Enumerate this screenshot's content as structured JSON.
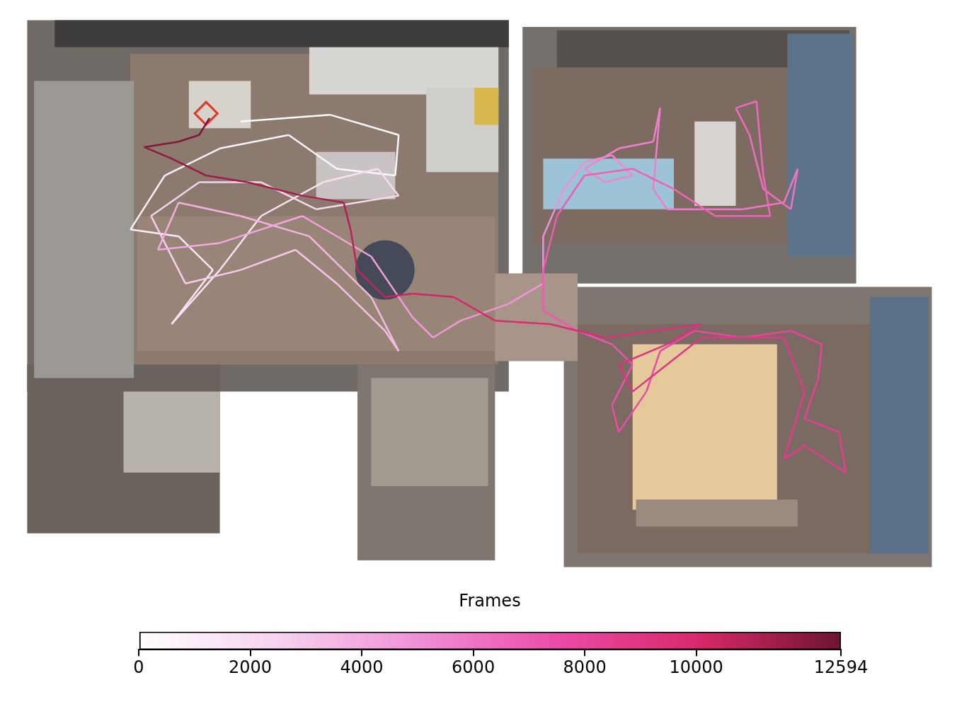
{
  "chart_data": {
    "type": "trajectory",
    "tick_labels": false,
    "grid": false,
    "xlim": [
      0,
      1352
    ],
    "ylim": [
      0,
      830
    ],
    "trajectory": {
      "x": [
        330,
        460,
        560,
        555,
        470,
        400,
        300,
        220,
        170,
        240,
        290,
        230,
        300,
        360,
        450,
        530,
        560,
        440,
        360,
        270,
        200,
        250,
        330,
        410,
        470,
        540,
        560,
        520,
        430,
        330,
        240,
        210,
        300,
        420,
        520,
        580,
        610,
        650,
        720,
        770,
        770,
        800,
        830,
        870,
        900,
        860,
        830,
        880,
        930,
        940,
        930,
        950,
        1000,
        1060,
        1120,
        1140,
        1130,
        1090,
        1070,
        1050,
        1080,
        1090,
        1100,
        1020,
        960,
        900,
        830,
        790,
        770,
        770,
        820,
        870,
        900,
        870,
        880,
        920,
        940,
        990,
        1060,
        1130,
        1175,
        1170,
        1150,
        1200,
        1210,
        1150,
        1120,
        1150,
        1120,
        1000,
        950,
        900,
        880,
        950,
        1000,
        860,
        780,
        700,
        640,
        580,
        540,
        500,
        490,
        480,
        420,
        340,
        280,
        230,
        190,
        240,
        270,
        285
      ],
      "y": [
        160,
        150,
        180,
        240,
        230,
        180,
        200,
        240,
        320,
        330,
        380,
        460,
        380,
        300,
        250,
        230,
        270,
        290,
        250,
        250,
        300,
        400,
        380,
        350,
        400,
        470,
        500,
        420,
        330,
        300,
        280,
        350,
        340,
        300,
        360,
        450,
        480,
        455,
        430,
        400,
        330,
        260,
        220,
        210,
        240,
        250,
        230,
        200,
        190,
        140,
        260,
        290,
        290,
        290,
        280,
        230,
        290,
        260,
        180,
        140,
        130,
        240,
        300,
        300,
        260,
        230,
        240,
        300,
        380,
        440,
        470,
        490,
        520,
        580,
        620,
        560,
        500,
        470,
        480,
        470,
        490,
        540,
        600,
        620,
        680,
        640,
        660,
        560,
        480,
        480,
        520,
        560,
        520,
        490,
        460,
        480,
        460,
        455,
        420,
        415,
        420,
        380,
        320,
        280,
        270,
        250,
        240,
        215,
        198,
        190,
        180,
        155
      ],
      "frames": [
        0,
        130,
        260,
        390,
        520,
        650,
        780,
        910,
        1040,
        1170,
        1300,
        1430,
        1560,
        1690,
        1820,
        1950,
        2080,
        2210,
        2340,
        2470,
        2600,
        2730,
        2860,
        2990,
        3120,
        3250,
        3380,
        3510,
        3640,
        3770,
        3900,
        4030,
        4160,
        4290,
        4420,
        4550,
        4680,
        4800,
        4870,
        4940,
        5010,
        5080,
        5150,
        5220,
        5290,
        5360,
        5430,
        5500,
        5570,
        5640,
        5710,
        5780,
        5850,
        5920,
        5990,
        6060,
        6130,
        6200,
        6270,
        6340,
        6410,
        6480,
        6550,
        6620,
        6690,
        6760,
        6830,
        6900,
        6970,
        7040,
        7100,
        7200,
        7300,
        7400,
        7500,
        7600,
        7700,
        7800,
        7900,
        8000,
        8100,
        8200,
        8300,
        8400,
        8500,
        8600,
        8700,
        8800,
        8900,
        9000,
        9100,
        9200,
        9300,
        9400,
        9500,
        9700,
        9880,
        10060,
        10240,
        10420,
        10600,
        10780,
        10960,
        11140,
        11320,
        11500,
        11680,
        11860,
        12040,
        12220,
        12400,
        12594
      ]
    },
    "camera": {
      "x": 280,
      "y": 148,
      "color": "#e8321e",
      "marker": "diamond"
    },
    "colorbar": {
      "label": "Frames",
      "range": [
        0,
        12594
      ],
      "ticks": [
        0,
        2000,
        4000,
        6000,
        8000,
        10000,
        12594
      ],
      "colors": [
        "#ffffff",
        "#f6d2ee",
        "#f08fd6",
        "#eb4aa6",
        "#d8286a",
        "#6e1430"
      ]
    }
  }
}
